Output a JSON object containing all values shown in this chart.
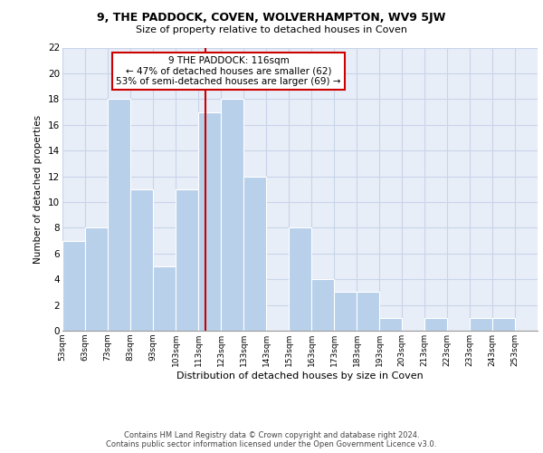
{
  "title1": "9, THE PADDOCK, COVEN, WOLVERHAMPTON, WV9 5JW",
  "title2": "Size of property relative to detached houses in Coven",
  "xlabel": "Distribution of detached houses by size in Coven",
  "ylabel": "Number of detached properties",
  "bar_edges": [
    53,
    63,
    73,
    83,
    93,
    103,
    113,
    123,
    133,
    143,
    153,
    163,
    173,
    183,
    193,
    203,
    213,
    223,
    233,
    243,
    253
  ],
  "bar_heights": [
    7,
    8,
    18,
    11,
    5,
    11,
    17,
    18,
    12,
    0,
    8,
    4,
    3,
    3,
    1,
    0,
    1,
    0,
    1,
    1
  ],
  "bar_color": "#b8d0ea",
  "bar_edgecolor": "#ffffff",
  "property_size": 116,
  "vline_color": "#cc0000",
  "annotation_line1": "9 THE PADDOCK: 116sqm",
  "annotation_line2": "← 47% of detached houses are smaller (62)",
  "annotation_line3": "53% of semi-detached houses are larger (69) →",
  "annotation_box_edgecolor": "#cc0000",
  "annotation_box_facecolor": "#ffffff",
  "ylim": [
    0,
    22
  ],
  "yticks": [
    0,
    2,
    4,
    6,
    8,
    10,
    12,
    14,
    16,
    18,
    20,
    22
  ],
  "tick_labels": [
    "53sqm",
    "63sqm",
    "73sqm",
    "83sqm",
    "93sqm",
    "103sqm",
    "113sqm",
    "123sqm",
    "133sqm",
    "143sqm",
    "153sqm",
    "163sqm",
    "173sqm",
    "183sqm",
    "193sqm",
    "203sqm",
    "213sqm",
    "223sqm",
    "233sqm",
    "243sqm",
    "253sqm"
  ],
  "footer1": "Contains HM Land Registry data © Crown copyright and database right 2024.",
  "footer2": "Contains public sector information licensed under the Open Government Licence v3.0.",
  "grid_color": "#c8d4e8",
  "bg_color": "#e8eef8"
}
